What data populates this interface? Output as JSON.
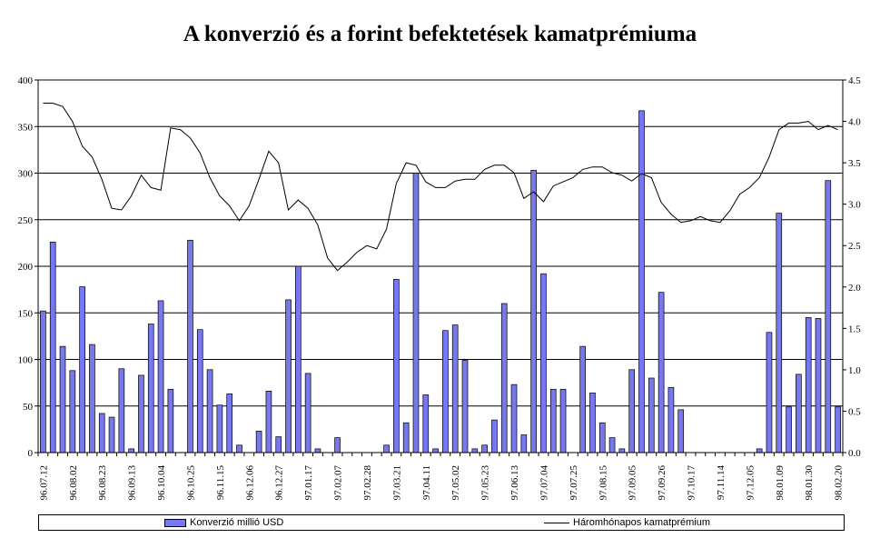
{
  "chart_data": {
    "type": "bar",
    "title": "A konverzió és a forint befektetések kamatprémiuma",
    "x_tick_labels": [
      "96.07.12",
      "96.08.02",
      "96.08.23",
      "96.09.13",
      "96.10.04",
      "96.10.25",
      "96.11.15",
      "96.12.06",
      "96.12.27",
      "97.01.17",
      "97.02.07",
      "97.02.28",
      "97.03.21",
      "97.04.11",
      "97.05.02",
      "97.05.23",
      "97.06.13",
      "97.07.04",
      "97.07.25",
      "97.08.15",
      "97.09.05",
      "97.09.26",
      "97.10.17",
      "97.11.14",
      "97.12.05",
      "98.01.09",
      "98.01.30",
      "98.02.20"
    ],
    "y_left": {
      "min": 0,
      "max": 400,
      "ticks": [
        "0",
        "50",
        "100",
        "150",
        "200",
        "250",
        "300",
        "350",
        "400"
      ]
    },
    "y_right": {
      "min": 0,
      "max": 4.5,
      "ticks": [
        "0.0",
        "0.5",
        "1.0",
        "1.5",
        "2.0",
        "2.5",
        "3.0",
        "3.5",
        "4.0",
        "4.5"
      ]
    },
    "grid": true,
    "legend_position": "bottom",
    "series": [
      {
        "name": "Konverzió millió USD",
        "type": "bar",
        "axis": "left",
        "color": "#7777ee",
        "values": [
          152,
          226,
          114,
          88,
          178,
          116,
          42,
          38,
          90,
          4,
          83,
          138,
          163,
          68,
          0,
          228,
          132,
          89,
          51,
          63,
          8,
          0,
          23,
          66,
          17,
          164,
          200,
          85,
          4,
          0,
          16,
          0,
          0,
          0,
          0,
          8,
          186,
          32,
          300,
          62,
          4,
          131,
          137,
          99,
          4,
          8,
          35,
          160,
          73,
          19,
          303,
          192,
          68,
          68,
          0,
          114,
          64,
          32,
          16,
          4,
          89,
          367,
          80,
          172,
          70,
          46,
          0,
          0,
          0,
          0,
          0,
          0,
          0,
          4,
          129,
          257,
          49,
          84,
          145,
          144,
          292,
          49
        ]
      },
      {
        "name": "Háromhónapos kamatprémium",
        "type": "line",
        "axis": "right",
        "color": "#000000",
        "values": [
          4.22,
          4.22,
          4.18,
          4.0,
          3.7,
          3.57,
          3.3,
          2.95,
          2.93,
          3.1,
          3.35,
          3.2,
          3.17,
          3.92,
          3.9,
          3.8,
          3.62,
          3.32,
          3.1,
          2.98,
          2.8,
          2.98,
          3.3,
          3.64,
          3.5,
          2.93,
          3.05,
          2.95,
          2.75,
          2.35,
          2.2,
          2.3,
          2.42,
          2.5,
          2.46,
          2.7,
          3.25,
          3.5,
          3.47,
          3.27,
          3.2,
          3.2,
          3.28,
          3.3,
          3.3,
          3.42,
          3.47,
          3.47,
          3.38,
          3.07,
          3.15,
          3.03,
          3.22,
          3.27,
          3.32,
          3.42,
          3.45,
          3.45,
          3.38,
          3.35,
          3.28,
          3.37,
          3.32,
          3.02,
          2.88,
          2.78,
          2.8,
          2.85,
          2.8,
          2.78,
          2.92,
          3.12,
          3.2,
          3.32,
          3.57,
          3.9,
          3.98,
          3.98,
          4.0,
          3.9,
          3.95,
          3.9
        ]
      }
    ]
  }
}
